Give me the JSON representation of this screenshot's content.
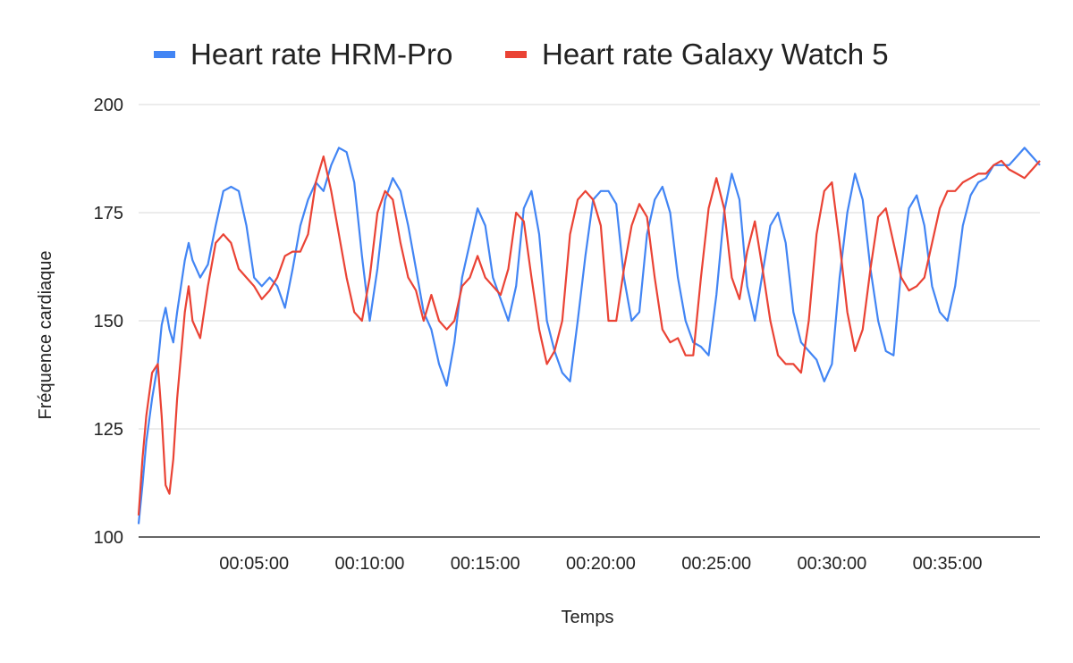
{
  "chart_data": {
    "type": "line",
    "xlabel": "Temps",
    "ylabel": "Fréquence cardiaque",
    "ylim": [
      100,
      200
    ],
    "xlim": [
      "00:00:00",
      "00:39:00"
    ],
    "y_ticks": [
      100,
      125,
      150,
      175,
      200
    ],
    "x_ticks": [
      "00:05:00",
      "00:10:00",
      "00:15:00",
      "00:20:00",
      "00:25:00",
      "00:30:00",
      "00:35:00"
    ],
    "grid": true,
    "legend_position": "top",
    "series": [
      {
        "name": "Heart rate HRM-Pro",
        "color": "#4285F4",
        "x": [
          "00:00:00",
          "00:00:10",
          "00:00:20",
          "00:00:35",
          "00:00:50",
          "00:01:00",
          "00:01:10",
          "00:01:20",
          "00:01:30",
          "00:01:40",
          "00:02:00",
          "00:02:10",
          "00:02:20",
          "00:02:40",
          "00:03:00",
          "00:03:20",
          "00:03:40",
          "00:04:00",
          "00:04:20",
          "00:04:40",
          "00:05:00",
          "00:05:20",
          "00:05:40",
          "00:06:00",
          "00:06:20",
          "00:06:40",
          "00:07:00",
          "00:07:20",
          "00:07:40",
          "00:08:00",
          "00:08:20",
          "00:08:40",
          "00:09:00",
          "00:09:20",
          "00:09:40",
          "00:10:00",
          "00:10:20",
          "00:10:40",
          "00:11:00",
          "00:11:20",
          "00:11:40",
          "00:12:00",
          "00:12:20",
          "00:12:40",
          "00:13:00",
          "00:13:20",
          "00:13:40",
          "00:14:00",
          "00:14:20",
          "00:14:40",
          "00:15:00",
          "00:15:20",
          "00:15:40",
          "00:16:00",
          "00:16:20",
          "00:16:40",
          "00:17:00",
          "00:17:20",
          "00:17:40",
          "00:18:00",
          "00:18:20",
          "00:18:40",
          "00:19:00",
          "00:19:20",
          "00:19:40",
          "00:20:00",
          "00:20:20",
          "00:20:40",
          "00:21:00",
          "00:21:20",
          "00:21:40",
          "00:22:00",
          "00:22:20",
          "00:22:40",
          "00:23:00",
          "00:23:20",
          "00:23:40",
          "00:24:00",
          "00:24:20",
          "00:24:40",
          "00:25:00",
          "00:25:20",
          "00:25:40",
          "00:26:00",
          "00:26:20",
          "00:26:40",
          "00:27:00",
          "00:27:20",
          "00:27:40",
          "00:28:00",
          "00:28:20",
          "00:28:40",
          "00:29:00",
          "00:29:20",
          "00:29:40",
          "00:30:00",
          "00:30:20",
          "00:30:40",
          "00:31:00",
          "00:31:20",
          "00:31:40",
          "00:32:00",
          "00:32:20",
          "00:32:40",
          "00:33:00",
          "00:33:20",
          "00:33:40",
          "00:34:00",
          "00:34:20",
          "00:34:40",
          "00:35:00",
          "00:35:20",
          "00:35:40",
          "00:36:00",
          "00:36:20",
          "00:36:40",
          "00:37:00",
          "00:37:20",
          "00:37:40",
          "00:38:00",
          "00:38:20",
          "00:38:40",
          "00:39:00"
        ],
        "values": [
          103,
          112,
          122,
          132,
          140,
          149,
          153,
          148,
          145,
          152,
          164,
          168,
          164,
          160,
          163,
          172,
          180,
          181,
          180,
          172,
          160,
          158,
          160,
          158,
          153,
          162,
          172,
          178,
          182,
          180,
          186,
          190,
          189,
          182,
          165,
          150,
          162,
          178,
          183,
          180,
          172,
          162,
          152,
          148,
          140,
          135,
          145,
          160,
          168,
          176,
          172,
          160,
          155,
          150,
          158,
          176,
          180,
          170,
          150,
          143,
          138,
          136,
          150,
          165,
          178,
          180,
          180,
          177,
          160,
          150,
          152,
          170,
          178,
          181,
          175,
          160,
          150,
          145,
          144,
          142,
          156,
          175,
          184,
          178,
          158,
          150,
          161,
          172,
          175,
          168,
          152,
          145,
          143,
          141,
          136,
          140,
          160,
          175,
          184,
          178,
          162,
          150,
          143,
          142,
          162,
          176,
          179,
          172,
          158,
          152,
          150,
          158,
          172,
          179,
          182,
          183,
          186,
          186,
          186,
          188,
          190,
          188,
          186
        ]
      },
      {
        "name": "Heart rate Galaxy Watch 5",
        "color": "#EA4335",
        "x": [
          "00:00:00",
          "00:00:10",
          "00:00:20",
          "00:00:35",
          "00:00:50",
          "00:01:00",
          "00:01:10",
          "00:01:20",
          "00:01:30",
          "00:01:40",
          "00:02:00",
          "00:02:10",
          "00:02:20",
          "00:02:40",
          "00:03:00",
          "00:03:20",
          "00:03:40",
          "00:04:00",
          "00:04:20",
          "00:04:40",
          "00:05:00",
          "00:05:20",
          "00:05:40",
          "00:06:00",
          "00:06:20",
          "00:06:40",
          "00:07:00",
          "00:07:20",
          "00:07:40",
          "00:08:00",
          "00:08:20",
          "00:08:40",
          "00:09:00",
          "00:09:20",
          "00:09:40",
          "00:10:00",
          "00:10:20",
          "00:10:40",
          "00:11:00",
          "00:11:20",
          "00:11:40",
          "00:12:00",
          "00:12:20",
          "00:12:40",
          "00:13:00",
          "00:13:20",
          "00:13:40",
          "00:14:00",
          "00:14:20",
          "00:14:40",
          "00:15:00",
          "00:15:20",
          "00:15:40",
          "00:16:00",
          "00:16:20",
          "00:16:40",
          "00:17:00",
          "00:17:20",
          "00:17:40",
          "00:18:00",
          "00:18:20",
          "00:18:40",
          "00:19:00",
          "00:19:20",
          "00:19:40",
          "00:20:00",
          "00:20:20",
          "00:20:40",
          "00:21:00",
          "00:21:20",
          "00:21:40",
          "00:22:00",
          "00:22:20",
          "00:22:40",
          "00:23:00",
          "00:23:20",
          "00:23:40",
          "00:24:00",
          "00:24:20",
          "00:24:40",
          "00:25:00",
          "00:25:20",
          "00:25:40",
          "00:26:00",
          "00:26:20",
          "00:26:40",
          "00:27:00",
          "00:27:20",
          "00:27:40",
          "00:28:00",
          "00:28:20",
          "00:28:40",
          "00:29:00",
          "00:29:20",
          "00:29:40",
          "00:30:00",
          "00:30:20",
          "00:30:40",
          "00:31:00",
          "00:31:20",
          "00:31:40",
          "00:32:00",
          "00:32:20",
          "00:32:40",
          "00:33:00",
          "00:33:20",
          "00:33:40",
          "00:34:00",
          "00:34:20",
          "00:34:40",
          "00:35:00",
          "00:35:20",
          "00:35:40",
          "00:36:00",
          "00:36:20",
          "00:36:40",
          "00:37:00",
          "00:37:20",
          "00:37:40",
          "00:38:00",
          "00:38:20",
          "00:38:40",
          "00:39:00"
        ],
        "values": [
          105,
          118,
          128,
          138,
          140,
          128,
          112,
          110,
          118,
          132,
          152,
          158,
          150,
          146,
          158,
          168,
          170,
          168,
          162,
          160,
          158,
          155,
          157,
          160,
          165,
          166,
          166,
          170,
          182,
          188,
          180,
          170,
          160,
          152,
          150,
          160,
          175,
          180,
          178,
          168,
          160,
          157,
          150,
          156,
          150,
          148,
          150,
          158,
          160,
          165,
          160,
          158,
          156,
          162,
          175,
          173,
          160,
          148,
          140,
          143,
          150,
          170,
          178,
          180,
          178,
          172,
          150,
          150,
          162,
          172,
          177,
          174,
          160,
          148,
          145,
          146,
          142,
          142,
          160,
          176,
          183,
          176,
          160,
          155,
          166,
          173,
          162,
          150,
          142,
          140,
          140,
          138,
          150,
          170,
          180,
          182,
          168,
          152,
          143,
          148,
          162,
          174,
          176,
          168,
          160,
          157,
          158,
          160,
          168,
          176,
          180,
          180,
          182,
          183,
          184,
          184,
          186,
          187,
          185,
          184,
          183,
          185,
          187
        ]
      }
    ]
  }
}
